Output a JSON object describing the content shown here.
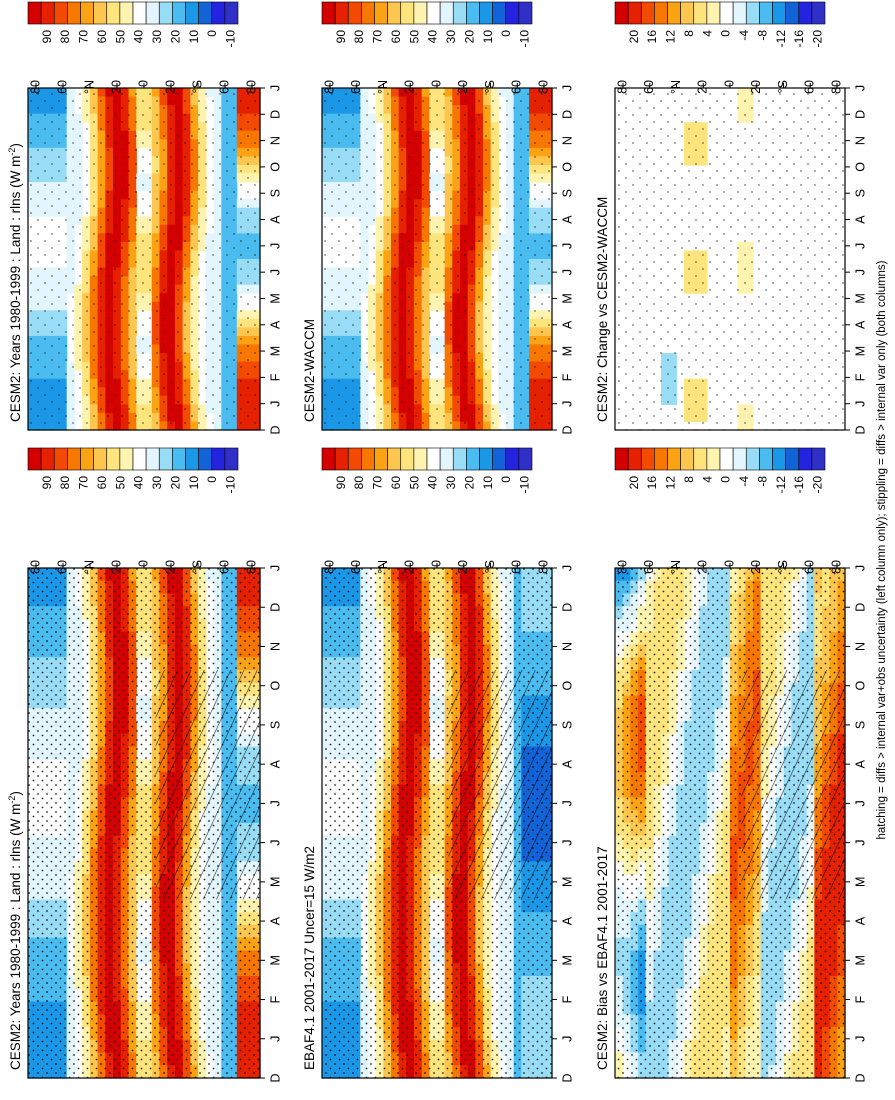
{
  "footnote": "hatching = diffs > internal var+obs uncertainty (left column only); stippling = diffs > internal var only (both columns)",
  "colors": {
    "absolute_scale": [
      "#d40000",
      "#e52100",
      "#f24a00",
      "#f77700",
      "#fba313",
      "#fdc64f",
      "#fde47d",
      "#fff3b0",
      "#ffffff",
      "#e4f6fd",
      "#98dcf5",
      "#4bbcf0",
      "#1b97e8",
      "#1363d8",
      "#2424e0",
      "#3030c8"
    ],
    "diff_scale": [
      "#d40000",
      "#e52100",
      "#f24a00",
      "#f77700",
      "#fba313",
      "#fdc64f",
      "#fde47d",
      "#fff3b0",
      "#ffffff",
      "#e4f6fd",
      "#98dcf5",
      "#4bbcf0",
      "#1b97e8",
      "#1363d8",
      "#2424e0",
      "#3030c8"
    ]
  },
  "chart_data": [
    {
      "type": "heatmap",
      "panel": "top-left",
      "title": "CESM2: Years 1980-1999 : Land : rlns (W m",
      "title_sup": "-2",
      "title_end": ")",
      "x": [
        "D",
        "J",
        "F",
        "M",
        "A",
        "M",
        "J",
        "J",
        "A",
        "S",
        "O",
        "N",
        "D",
        "J"
      ],
      "y_ticks": [
        "80",
        "60",
        "°N",
        "20",
        "0",
        "20",
        "°S",
        "60",
        "80"
      ],
      "colorbar_labels": [
        "90",
        "80",
        "70",
        "60",
        "50",
        "40",
        "30",
        "20",
        "10",
        "0",
        "-10"
      ],
      "stippling": true,
      "hatching": true
    },
    {
      "type": "heatmap",
      "panel": "top-right",
      "title": "CESM2: Years 1980-1999 : Land : rlns (W m",
      "title_sup": "-2",
      "title_end": ")",
      "x": [
        "D",
        "J",
        "F",
        "M",
        "A",
        "M",
        "J",
        "J",
        "A",
        "S",
        "O",
        "N",
        "D",
        "J"
      ],
      "y_ticks": [
        "80",
        "60",
        "°N",
        "20",
        "0",
        "20",
        "°S",
        "60",
        "80"
      ],
      "colorbar_labels": [
        "90",
        "80",
        "70",
        "60",
        "50",
        "40",
        "30",
        "20",
        "10",
        "0",
        "-10"
      ],
      "stippling": true,
      "hatching": false
    },
    {
      "type": "heatmap",
      "panel": "middle-left",
      "title": "EBAF4.1 2001-2017 Uncer=15 W/m2",
      "x": [
        "D",
        "J",
        "F",
        "M",
        "A",
        "M",
        "J",
        "J",
        "A",
        "S",
        "O",
        "N",
        "D",
        "J"
      ],
      "y_ticks": [
        "80",
        "60",
        "°N",
        "20",
        "0",
        "20",
        "°S",
        "60",
        "80"
      ],
      "colorbar_labels": [
        "90",
        "80",
        "70",
        "60",
        "50",
        "40",
        "30",
        "20",
        "10",
        "0",
        "-10"
      ],
      "stippling": true,
      "hatching": true
    },
    {
      "type": "heatmap",
      "panel": "middle-right",
      "title": "CESM2-WACCM",
      "x": [
        "D",
        "J",
        "F",
        "M",
        "A",
        "M",
        "J",
        "J",
        "A",
        "S",
        "O",
        "N",
        "D",
        "J"
      ],
      "y_ticks": [
        "80",
        "60",
        "°N",
        "20",
        "0",
        "20",
        "°S",
        "60",
        "80"
      ],
      "colorbar_labels": [
        "90",
        "80",
        "70",
        "60",
        "50",
        "40",
        "30",
        "20",
        "10",
        "0",
        "-10"
      ],
      "stippling": true,
      "hatching": false
    },
    {
      "type": "heatmap",
      "panel": "bottom-left",
      "title": "CESM2: Bias vs EBAF4.1 2001-2017",
      "x": [
        "D",
        "J",
        "F",
        "M",
        "A",
        "M",
        "J",
        "J",
        "A",
        "S",
        "O",
        "N",
        "D",
        "J"
      ],
      "y_ticks": [
        "80",
        "60",
        "°N",
        "20",
        "0",
        "20",
        "°S",
        "60",
        "80"
      ],
      "colorbar_labels": [
        "20",
        "16",
        "12",
        "8",
        "4",
        "0",
        "-4",
        "-8",
        "-12",
        "-16",
        "-20"
      ],
      "stippling": true,
      "hatching": true
    },
    {
      "type": "heatmap",
      "panel": "bottom-right",
      "title": "CESM2: Change vs CESM2-WACCM",
      "x": [
        "D",
        "J",
        "F",
        "M",
        "A",
        "M",
        "J",
        "J",
        "A",
        "S",
        "O",
        "N",
        "D",
        "J"
      ],
      "y_ticks": [
        "80",
        "60",
        "°N",
        "20",
        "0",
        "20",
        "°S",
        "60",
        "80"
      ],
      "colorbar_labels": [
        "20",
        "16",
        "12",
        "8",
        "4",
        "0",
        "-4",
        "-8",
        "-12",
        "-16",
        "-20"
      ],
      "stippling": true,
      "hatching": false
    }
  ]
}
